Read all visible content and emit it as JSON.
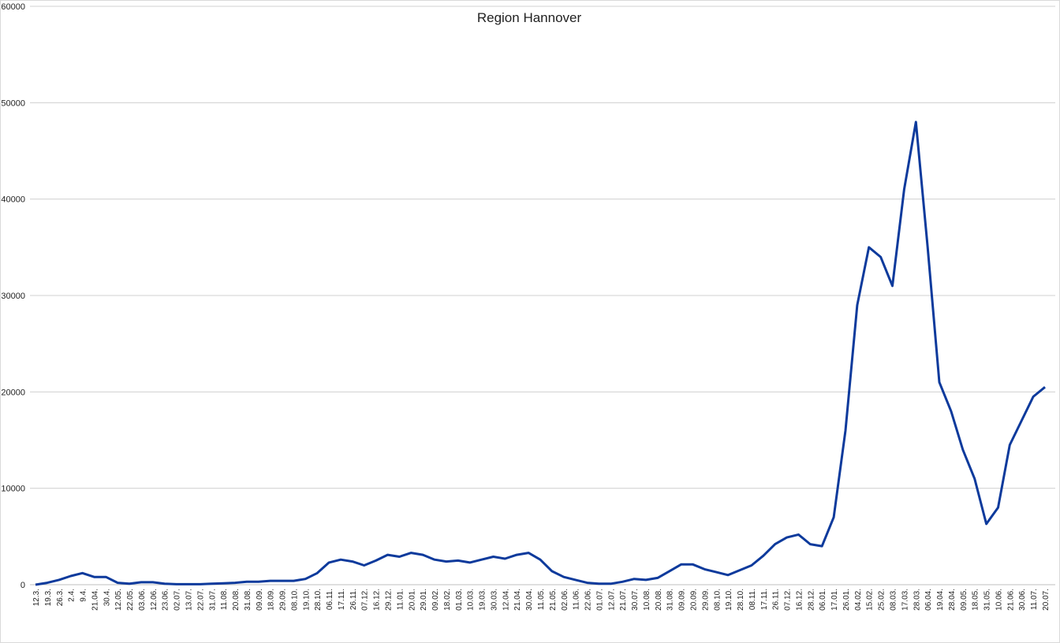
{
  "chart_data": {
    "type": "line",
    "title": "Region Hannover",
    "categories": [
      "12.3.",
      "19.3.",
      "26.3.",
      "2.4.",
      "9.4.",
      "21.04.",
      "30.4.",
      "12.05.",
      "22.05.",
      "03.06.",
      "12.06.",
      "23.06.",
      "02.07.",
      "13.07.",
      "22.07.",
      "31.07.",
      "11.08.",
      "20.08.",
      "31.08.",
      "09.09.",
      "18.09.",
      "29.09.",
      "08.10.",
      "19.10.",
      "28.10.",
      "06.11.",
      "17.11.",
      "26.11.",
      "07.12.",
      "16.12.",
      "29.12.",
      "11.01.",
      "20.01.",
      "29.01.",
      "09.02.",
      "18.02.",
      "01.03.",
      "10.03.",
      "19.03.",
      "30.03.",
      "12.04.",
      "21.04.",
      "30.04.",
      "11.05.",
      "21.05.",
      "02.06.",
      "11.06.",
      "22.06.",
      "01.07.",
      "12.07.",
      "21.07.",
      "30.07.",
      "10.08.",
      "20.08.",
      "31.08.",
      "09.09.",
      "20.09.",
      "29.09.",
      "08.10.",
      "19.10.",
      "28.10.",
      "08.11.",
      "17.11.",
      "26.11.",
      "07.12.",
      "16.12.",
      "28.12.",
      "06.01.",
      "17.01.",
      "26.01.",
      "04.02.",
      "15.02.",
      "25.02.",
      "08.03.",
      "17.03.",
      "28.03.",
      "06.04.",
      "19.04.",
      "28.04.",
      "09.05.",
      "18.05.",
      "31.05.",
      "10.06.",
      "21.06.",
      "30.06.",
      "11.07.",
      "20.07."
    ],
    "values": [
      0,
      200,
      500,
      900,
      1200,
      800,
      800,
      200,
      100,
      250,
      250,
      100,
      50,
      50,
      50,
      100,
      150,
      200,
      300,
      300,
      400,
      400,
      400,
      600,
      1200,
      2300,
      2600,
      2400,
      2000,
      2500,
      3100,
      2900,
      3300,
      3100,
      2600,
      2400,
      2500,
      2300,
      2600,
      2900,
      2700,
      3100,
      3300,
      2600,
      1400,
      800,
      500,
      200,
      100,
      100,
      300,
      600,
      500,
      700,
      1400,
      2100,
      2100,
      1600,
      1300,
      1000,
      1500,
      2000,
      3000,
      4200,
      4900,
      5200,
      4200,
      4000,
      7000,
      16000,
      29000,
      35000,
      34000,
      31000,
      41000,
      48000,
      35000,
      21000,
      18000,
      14000,
      11000,
      6300,
      8000,
      14500,
      17000,
      19500,
      20500
    ],
    "color": "#0d3a9c",
    "ylim": [
      0,
      60000
    ],
    "yticks": [
      0,
      10000,
      20000,
      30000,
      40000,
      50000,
      60000
    ],
    "grid": true
  }
}
